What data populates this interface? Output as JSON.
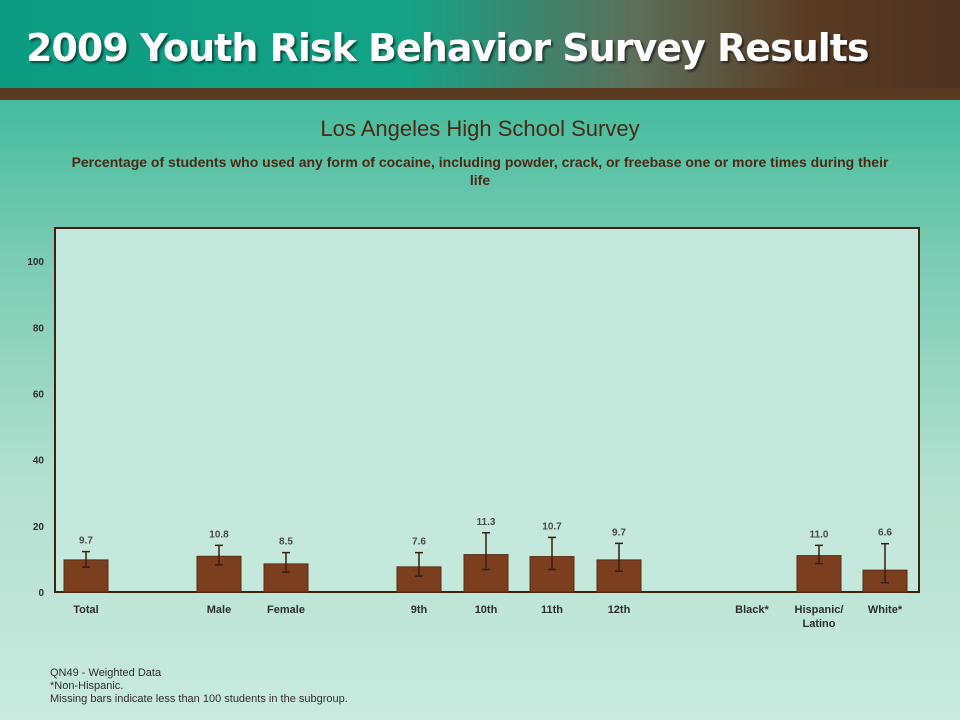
{
  "header": {
    "title": "2009 Youth Risk Behavior Survey Results"
  },
  "chart_data": {
    "type": "bar",
    "title": "Los Angeles High School Survey",
    "subtitle": "Percentage of students who used any form of cocaine, including powder, crack, or freebase one or more times during their life",
    "categories": [
      [
        "Total"
      ],
      [
        "Male"
      ],
      [
        "Female"
      ],
      [
        "9th"
      ],
      [
        "10th"
      ],
      [
        "11th"
      ],
      [
        "12th"
      ],
      [
        "Black*"
      ],
      [
        "Hispanic/",
        "Latino"
      ],
      [
        "White*"
      ]
    ],
    "values": [
      9.7,
      10.8,
      8.5,
      7.6,
      11.3,
      10.7,
      9.7,
      null,
      11.0,
      6.6
    ],
    "value_labels": [
      "9.7",
      "10.8",
      "8.5",
      "7.6",
      "11.3",
      "10.7",
      "9.7",
      "",
      "11.0",
      "6.6"
    ],
    "error_low": [
      7.5,
      8.2,
      6.0,
      4.8,
      6.8,
      6.8,
      6.3,
      null,
      8.6,
      2.8
    ],
    "error_high": [
      12.2,
      14.1,
      11.9,
      11.9,
      17.9,
      16.5,
      14.7,
      null,
      14.1,
      14.6
    ],
    "ylim": [
      0,
      110
    ],
    "yticks": [
      0,
      20,
      40,
      60,
      80,
      100
    ],
    "grid": false,
    "legend": "none",
    "xlabel": "",
    "ylabel": "",
    "colors": {
      "bar": "#7b3f1f",
      "bar_edge": "#5a2c12",
      "error_bar": "#3a1e0e",
      "plot_border": "#3d2411",
      "plot_background": "#c5e8dc"
    }
  },
  "footnotes": [
    "QN49 - Weighted Data",
    "*Non-Hispanic.",
    "Missing bars indicate less than 100 students in the subgroup."
  ]
}
